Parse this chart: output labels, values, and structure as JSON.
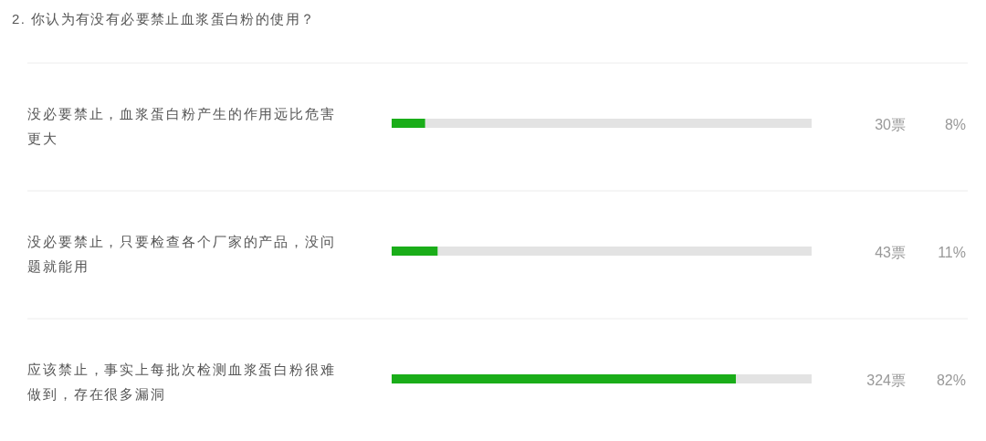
{
  "chart_data": {
    "type": "bar",
    "orientation": "horizontal",
    "title": "2. 你认为有没有必要禁止血浆蛋白粉的使用？",
    "categories": [
      "没必要禁止，血浆蛋白粉产生的作用远比危害更大",
      "没必要禁止，只要检查各个厂家的产品，没问题就能用",
      "应该禁止，事实上每批次检测血浆蛋白粉很难做到，存在很多漏洞"
    ],
    "series": [
      {
        "color": "#1aad19",
        "values": [
          8,
          11,
          82
        ],
        "value_labels": [
          "8%",
          "11%",
          "82%"
        ]
      }
    ],
    "xlim": [
      0,
      100
    ],
    "tick_labels": "y",
    "annotations": [
      "30票",
      "43票",
      "324票"
    ]
  }
}
